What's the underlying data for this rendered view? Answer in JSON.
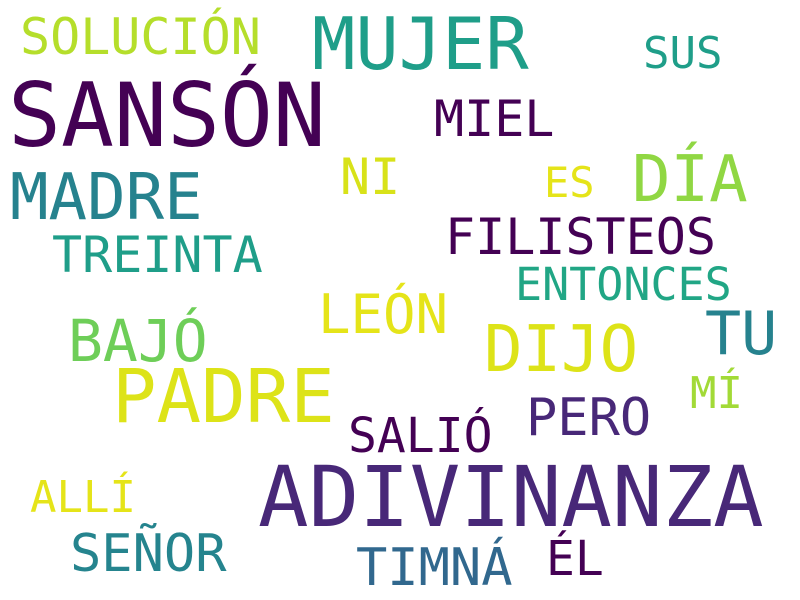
{
  "palette": {
    "dark_purple": "#440154",
    "purple": "#482878",
    "indigo": "#3e4989",
    "blue": "#31688e",
    "teal_blue": "#26828e",
    "teal": "#1f9e89",
    "green_teal": "#35b779",
    "green": "#6ece58",
    "lime": "#b5de2b",
    "yellow": "#dde318"
  },
  "words": [
    {
      "text": "SANSÓN",
      "color": "#440154"
    },
    {
      "text": "ADIVINANZA",
      "color": "#482878"
    },
    {
      "text": "MUJER",
      "color": "#1f9e89"
    },
    {
      "text": "PADRE",
      "color": "#dde318"
    },
    {
      "text": "DÍA",
      "color": "#90d743"
    },
    {
      "text": "MADRE",
      "color": "#26828e"
    },
    {
      "text": "DIJO",
      "color": "#dde318"
    },
    {
      "text": "SOLUCIÓN",
      "color": "#b5de2b"
    },
    {
      "text": "FILISTEOS",
      "color": "#440154"
    },
    {
      "text": "TREINTA",
      "color": "#1f9e89"
    },
    {
      "text": "BAJÓ",
      "color": "#6ece58"
    },
    {
      "text": "LEÓN",
      "color": "#e5e419"
    },
    {
      "text": "TU",
      "color": "#26828e"
    },
    {
      "text": "MIEL",
      "color": "#440154"
    },
    {
      "text": "SUS",
      "color": "#1f9e89"
    },
    {
      "text": "NI",
      "color": "#d8e219"
    },
    {
      "text": "ES",
      "color": "#e5e419"
    },
    {
      "text": "ENTONCES",
      "color": "#21a685"
    },
    {
      "text": "PERO",
      "color": "#482878"
    },
    {
      "text": "MÍ",
      "color": "#a2da37"
    },
    {
      "text": "SALIÓ",
      "color": "#440154"
    },
    {
      "text": "ALLÍ",
      "color": "#e5e419"
    },
    {
      "text": "SEÑOR",
      "color": "#25848e"
    },
    {
      "text": "TIMNÁ",
      "color": "#31688e"
    },
    {
      "text": "ÉL",
      "color": "#440154"
    }
  ]
}
